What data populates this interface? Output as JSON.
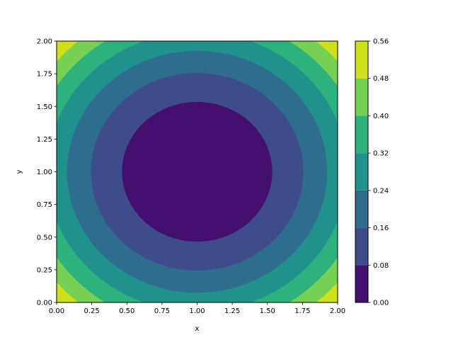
{
  "chart_data": {
    "type": "heatmap",
    "subtype": "filled-contour",
    "title": "",
    "xlabel": "x",
    "ylabel": "y",
    "xlim": [
      0.0,
      2.0
    ],
    "ylim": [
      0.0,
      2.0
    ],
    "xticks": [
      "0.00",
      "0.25",
      "0.50",
      "0.75",
      "1.00",
      "1.25",
      "1.50",
      "1.75",
      "2.00"
    ],
    "yticks": [
      "0.00",
      "0.25",
      "0.50",
      "0.75",
      "1.00",
      "1.25",
      "1.50",
      "1.75",
      "2.00"
    ],
    "grid": false,
    "colormap": "viridis",
    "center": [
      1.0,
      1.0
    ],
    "function": "0.28 * ((x-1)^2 + (y-1)^2)",
    "levels": [
      0.0,
      0.08,
      0.16,
      0.24,
      0.32,
      0.4,
      0.48,
      0.56
    ],
    "colorbar": {
      "ticks": [
        "0.00",
        "0.08",
        "0.16",
        "0.24",
        "0.32",
        "0.40",
        "0.48",
        "0.56"
      ],
      "colors": [
        "#440f6f",
        "#3e4c8a",
        "#2e6d8e",
        "#21918c",
        "#2db27d",
        "#75d054",
        "#d0e11c"
      ]
    }
  }
}
